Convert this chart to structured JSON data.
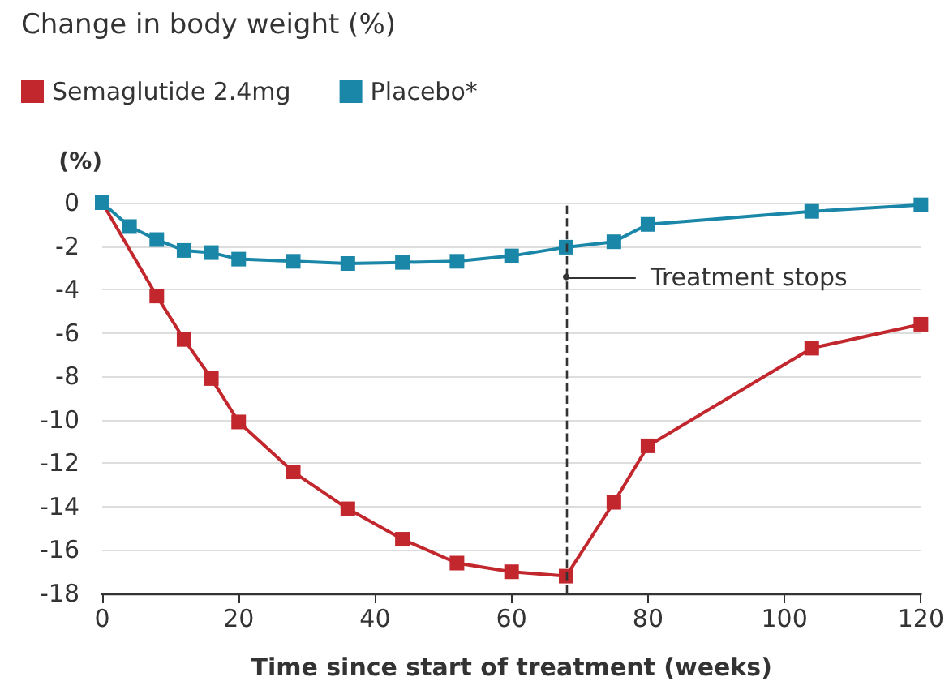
{
  "chart_data": {
    "type": "line",
    "title": "Change in body weight (%)",
    "ylabel": "(%)",
    "xlabel": "Time since start of treatment (weeks)",
    "series": [
      {
        "name": "Semaglutide 2.4mg",
        "color": "#c1272d",
        "x": [
          0,
          8,
          12,
          16,
          20,
          28,
          36,
          44,
          52,
          60,
          68,
          75,
          80,
          104,
          120
        ],
        "values": [
          0,
          -4.3,
          -6.3,
          -8.1,
          -10.1,
          -12.4,
          -14.1,
          -15.5,
          -16.6,
          -17.0,
          -17.2,
          -13.8,
          -11.2,
          -6.7,
          -5.6
        ]
      },
      {
        "name": "Placebo*",
        "color": "#1a86a8",
        "x": [
          0,
          4,
          8,
          12,
          16,
          20,
          28,
          36,
          44,
          52,
          60,
          68,
          75,
          80,
          104,
          120
        ],
        "values": [
          0,
          -1.1,
          -1.7,
          -2.2,
          -2.3,
          -2.6,
          -2.7,
          -2.8,
          -2.75,
          -2.7,
          -2.45,
          -2.05,
          -1.8,
          -1.0,
          -0.4,
          -0.1
        ]
      }
    ],
    "xlim": [
      0,
      120
    ],
    "xticks": [
      0,
      20,
      40,
      60,
      80,
      100,
      120
    ],
    "ylim": [
      -18,
      0
    ],
    "yticks": [
      0,
      -2,
      -4,
      -6,
      -8,
      -10,
      -12,
      -14,
      -16,
      -18
    ],
    "ref_lines": [
      {
        "axis": "x",
        "value": 68,
        "label": "Treatment stops",
        "line_style": "dashed",
        "color": "#333333"
      }
    ],
    "grid": "y",
    "legend": "top left",
    "marker": "square",
    "line_style": "solid"
  }
}
